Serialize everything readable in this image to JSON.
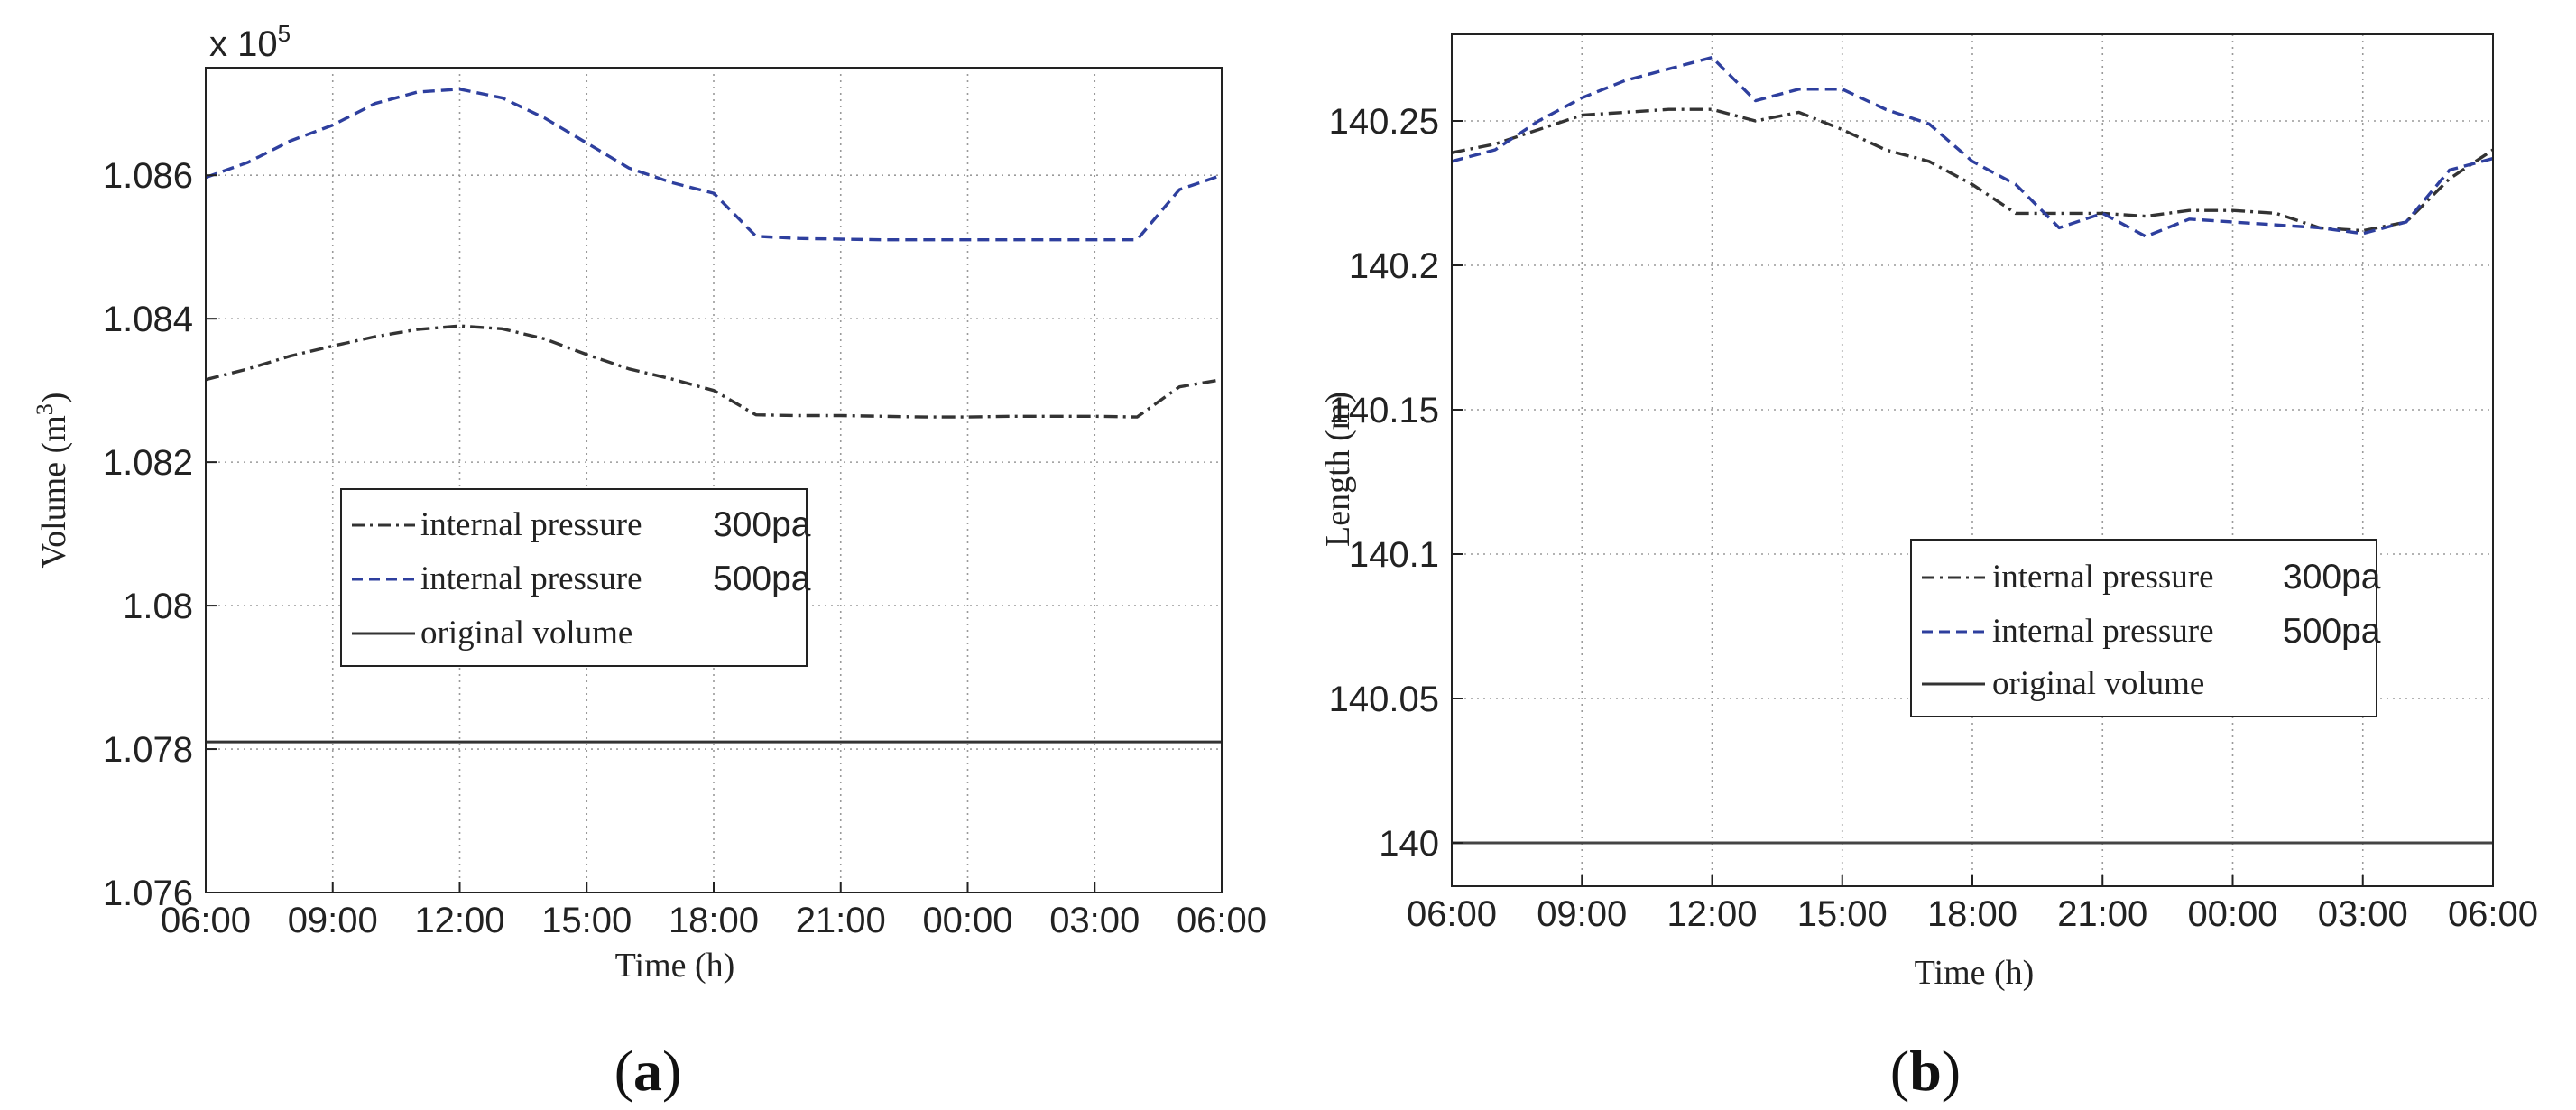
{
  "chart_data": [
    {
      "type": "line",
      "panel_label": {
        "open": "(",
        "letter": "a",
        "close": ")"
      },
      "xlabel": "Time (h)",
      "ylabel_main": "Volume (m",
      "ylabel_sup": "3",
      "ylabel_close": ")",
      "multiplier": {
        "base": "x 10",
        "exp": "5"
      },
      "x": [
        "06:00",
        "09:00",
        "12:00",
        "15:00",
        "18:00",
        "21:00",
        "00:00",
        "03:00",
        "06:00"
      ],
      "x_hours": [
        0,
        3,
        6,
        9,
        12,
        15,
        18,
        21,
        24
      ],
      "xlim": [
        0,
        24
      ],
      "ylim": [
        1.076,
        1.0875
      ],
      "yticks": [
        1.076,
        1.078,
        1.08,
        1.082,
        1.084,
        1.086
      ],
      "ytick_labels": [
        "1.076",
        "1.078",
        "1.08",
        "1.082",
        "1.084",
        "1.086"
      ],
      "grid": true,
      "legend_position": "center-left",
      "series": [
        {
          "name": "internal pressure",
          "value_label": "300pa",
          "style": "dashdot",
          "color": "#333333",
          "points": [
            [
              0,
              1.08315
            ],
            [
              1,
              1.0833
            ],
            [
              2,
              1.08348
            ],
            [
              3,
              1.08362
            ],
            [
              4,
              1.08375
            ],
            [
              5,
              1.08385
            ],
            [
              6,
              1.0839
            ],
            [
              7,
              1.08386
            ],
            [
              8,
              1.08372
            ],
            [
              9,
              1.0835
            ],
            [
              10,
              1.0833
            ],
            [
              11,
              1.08316
            ],
            [
              12,
              1.083
            ],
            [
              13,
              1.08266
            ],
            [
              14,
              1.08265
            ],
            [
              15,
              1.08265
            ],
            [
              16,
              1.08264
            ],
            [
              17,
              1.08263
            ],
            [
              18,
              1.08263
            ],
            [
              19,
              1.08264
            ],
            [
              20,
              1.08264
            ],
            [
              21,
              1.08264
            ],
            [
              22,
              1.08263
            ],
            [
              23,
              1.08305
            ],
            [
              24,
              1.08315
            ]
          ]
        },
        {
          "name": "internal pressure",
          "value_label": "500pa",
          "style": "dashed",
          "color": "#2e3f9e",
          "points": [
            [
              0,
              1.08597
            ],
            [
              1,
              1.08618
            ],
            [
              2,
              1.08648
            ],
            [
              3,
              1.0867
            ],
            [
              4,
              1.087
            ],
            [
              5,
              1.08716
            ],
            [
              6,
              1.0872
            ],
            [
              7,
              1.08708
            ],
            [
              8,
              1.0868
            ],
            [
              9,
              1.08645
            ],
            [
              10,
              1.0861
            ],
            [
              11,
              1.0859
            ],
            [
              12,
              1.08575
            ],
            [
              13,
              1.08515
            ],
            [
              14,
              1.08512
            ],
            [
              15,
              1.08511
            ],
            [
              16,
              1.0851
            ],
            [
              17,
              1.0851
            ],
            [
              18,
              1.0851
            ],
            [
              19,
              1.0851
            ],
            [
              20,
              1.0851
            ],
            [
              21,
              1.0851
            ],
            [
              22,
              1.0851
            ],
            [
              23,
              1.0858
            ],
            [
              24,
              1.086
            ]
          ]
        },
        {
          "name": "original volume",
          "value_label": "",
          "style": "solid",
          "color": "#333333",
          "points": [
            [
              0,
              1.0781
            ],
            [
              24,
              1.0781
            ]
          ]
        }
      ]
    },
    {
      "type": "line",
      "panel_label": {
        "open": "(",
        "letter": "b",
        "close": ")"
      },
      "xlabel": "Time (h)",
      "ylabel": "Length (m)",
      "x": [
        "06:00",
        "09:00",
        "12:00",
        "15:00",
        "18:00",
        "21:00",
        "00:00",
        "03:00",
        "06:00"
      ],
      "x_hours": [
        0,
        3,
        6,
        9,
        12,
        15,
        18,
        21,
        24
      ],
      "xlim": [
        0,
        24
      ],
      "ylim": [
        139.985,
        140.28
      ],
      "yticks": [
        140,
        140.05,
        140.1,
        140.15,
        140.2,
        140.25
      ],
      "ytick_labels": [
        "140",
        "140.05",
        "140.1",
        "140.15",
        "140.2",
        "140.25"
      ],
      "grid": true,
      "legend_position": "center-right",
      "series": [
        {
          "name": "internal pressure",
          "value_label": "300pa",
          "style": "dashdot",
          "color": "#333333",
          "points": [
            [
              0,
              140.239
            ],
            [
              1,
              140.242
            ],
            [
              2,
              140.247
            ],
            [
              3,
              140.252
            ],
            [
              4,
              140.253
            ],
            [
              5,
              140.254
            ],
            [
              6,
              140.254
            ],
            [
              7,
              140.25
            ],
            [
              8,
              140.253
            ],
            [
              9,
              140.247
            ],
            [
              10,
              140.24
            ],
            [
              11,
              140.236
            ],
            [
              12,
              140.228
            ],
            [
              13,
              140.218
            ],
            [
              14,
              140.218
            ],
            [
              15,
              140.218
            ],
            [
              16,
              140.217
            ],
            [
              17,
              140.219
            ],
            [
              18,
              140.219
            ],
            [
              19,
              140.218
            ],
            [
              20,
              140.213
            ],
            [
              21,
              140.212
            ],
            [
              22,
              140.215
            ],
            [
              23,
              140.23
            ],
            [
              24,
              140.24
            ]
          ]
        },
        {
          "name": "internal pressure",
          "value_label": "500pa",
          "style": "dashed",
          "color": "#2e3f9e",
          "points": [
            [
              0,
              140.236
            ],
            [
              1,
              140.24
            ],
            [
              2,
              140.25
            ],
            [
              3,
              140.258
            ],
            [
              4,
              140.264
            ],
            [
              5,
              140.268
            ],
            [
              6,
              140.272
            ],
            [
              7,
              140.257
            ],
            [
              8,
              140.261
            ],
            [
              9,
              140.261
            ],
            [
              10,
              140.254
            ],
            [
              11,
              140.249
            ],
            [
              12,
              140.236
            ],
            [
              13,
              140.228
            ],
            [
              14,
              140.213
            ],
            [
              15,
              140.218
            ],
            [
              16,
              140.21
            ],
            [
              17,
              140.216
            ],
            [
              18,
              140.215
            ],
            [
              19,
              140.214
            ],
            [
              20,
              140.213
            ],
            [
              21,
              140.211
            ],
            [
              22,
              140.215
            ],
            [
              23,
              140.233
            ],
            [
              24,
              140.237
            ]
          ]
        },
        {
          "name": "original volume",
          "value_label": "",
          "style": "solid",
          "color": "#444444",
          "points": [
            [
              0,
              140.0
            ],
            [
              24,
              140.0
            ]
          ]
        }
      ]
    }
  ]
}
